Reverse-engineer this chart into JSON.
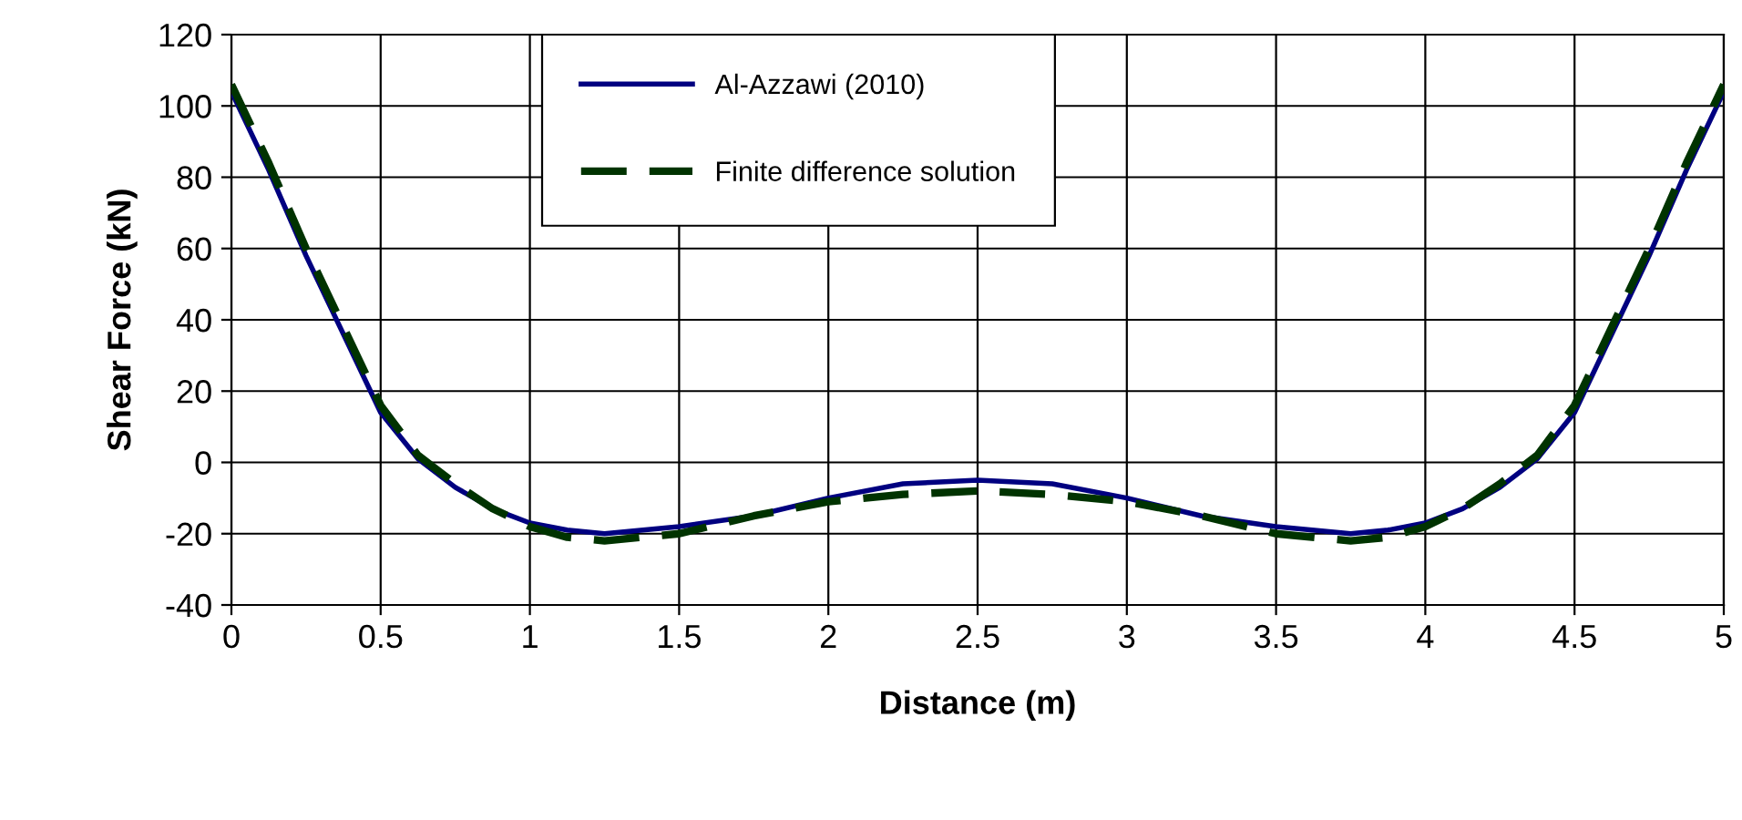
{
  "chart_data": {
    "type": "line",
    "xlabel": "Distance (m)",
    "ylabel": "Shear Force (kN)",
    "xlim": [
      0,
      5
    ],
    "xticks": [
      0,
      0.5,
      1,
      1.5,
      2,
      2.5,
      3,
      3.5,
      4,
      4.5,
      5
    ],
    "ylim": [
      -40,
      120
    ],
    "yticks": [
      -40,
      -20,
      0,
      20,
      40,
      60,
      80,
      100,
      120
    ],
    "grid": true,
    "legend": "top",
    "marker": "none",
    "series": [
      {
        "name": "Al-Azzawi (2010)",
        "color": "#000080",
        "line_style": "solid",
        "x": [
          0,
          0.125,
          0.25,
          0.375,
          0.5,
          0.625,
          0.75,
          0.875,
          1,
          1.125,
          1.25,
          1.5,
          1.75,
          2,
          2.25,
          2.5,
          2.75,
          3,
          3.25,
          3.5,
          3.75,
          3.875,
          4,
          4.125,
          4.25,
          4.375,
          4.5,
          4.625,
          4.75,
          4.875,
          5
        ],
        "values": [
          104,
          82,
          58,
          36,
          14,
          1,
          -7,
          -13,
          -17,
          -19,
          -20,
          -18,
          -15,
          -10,
          -6,
          -5,
          -6,
          -10,
          -15,
          -18,
          -20,
          -19,
          -17,
          -13,
          -7,
          1,
          14,
          36,
          58,
          82,
          104
        ]
      },
      {
        "name": "Finite difference solution",
        "color": "#003300",
        "line_style": "dashed",
        "x": [
          0,
          0.125,
          0.25,
          0.375,
          0.5,
          0.625,
          0.75,
          0.875,
          1,
          1.125,
          1.25,
          1.5,
          1.75,
          2,
          2.25,
          2.5,
          2.75,
          3,
          3.25,
          3.5,
          3.75,
          3.875,
          4,
          4.125,
          4.25,
          4.375,
          4.5,
          4.625,
          4.75,
          4.875,
          5
        ],
        "values": [
          106,
          84,
          60,
          38,
          16,
          2,
          -6,
          -13,
          -18,
          -21,
          -22,
          -20,
          -15,
          -11,
          -9,
          -8,
          -9,
          -11,
          -15,
          -20,
          -22,
          -21,
          -18,
          -13,
          -6,
          2,
          16,
          38,
          60,
          84,
          106
        ]
      }
    ]
  }
}
